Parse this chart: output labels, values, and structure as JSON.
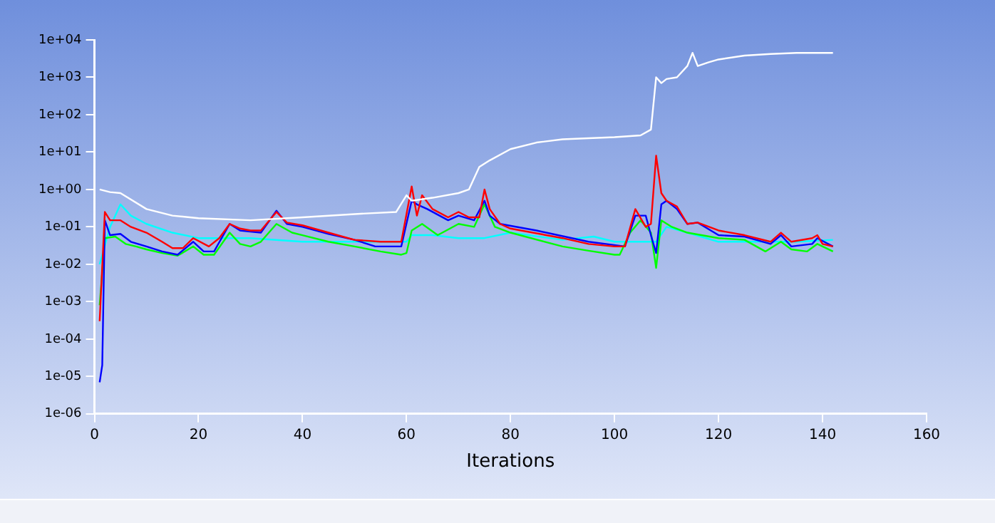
{
  "chart_data": {
    "type": "line",
    "xlabel": "Iterations",
    "log": "y",
    "grid": false,
    "legend": false,
    "marker": "none",
    "line_style": "solid",
    "xlim": [
      0,
      160
    ],
    "xticks": [
      0,
      20,
      40,
      60,
      80,
      100,
      120,
      140,
      160
    ],
    "ylim": [
      1e-06,
      10000
    ],
    "yticks": [
      {
        "value": 1e-06,
        "label": "1e-06"
      },
      {
        "value": 1e-05,
        "label": "1e-05"
      },
      {
        "value": 0.0001,
        "label": "1e-04"
      },
      {
        "value": 0.001,
        "label": "1e-03"
      },
      {
        "value": 0.01,
        "label": "1e-02"
      },
      {
        "value": 0.1,
        "label": "1e-01"
      },
      {
        "value": 1,
        "label": "1e+00"
      },
      {
        "value": 10,
        "label": "1e+01"
      },
      {
        "value": 100,
        "label": "1e+02"
      },
      {
        "value": 1000,
        "label": "1e+03"
      },
      {
        "value": 10000,
        "label": "1e+04"
      }
    ],
    "series": [
      {
        "color": "#ffffff",
        "x": [
          1,
          3,
          5,
          10,
          15,
          20,
          30,
          40,
          50,
          58,
          60,
          61,
          65,
          70,
          72,
          74,
          76,
          80,
          85,
          90,
          100,
          105,
          107,
          108,
          109,
          110,
          112,
          114,
          115,
          116,
          118,
          120,
          125,
          130,
          135,
          142
        ],
        "values": [
          1.0,
          0.85,
          0.8,
          0.3,
          0.2,
          0.17,
          0.15,
          0.18,
          0.22,
          0.25,
          0.7,
          0.5,
          0.6,
          0.8,
          1.0,
          4,
          6,
          12,
          18,
          22,
          25,
          28,
          40,
          1000,
          700,
          900,
          1000,
          2000,
          4500,
          2000,
          2500,
          3000,
          3800,
          4200,
          4500,
          4500
        ]
      },
      {
        "color": "#ff0000",
        "x": [
          1,
          2,
          3,
          5,
          7,
          10,
          13,
          15,
          17,
          19,
          22,
          24,
          26,
          28,
          30,
          32,
          35,
          37,
          40,
          45,
          50,
          55,
          59,
          61,
          62,
          63,
          65,
          68,
          70,
          72,
          74,
          75,
          76,
          78,
          80,
          90,
          95,
          100,
          102,
          104,
          106,
          107,
          108,
          109,
          110,
          112,
          114,
          116,
          120,
          125,
          130,
          132,
          134,
          138,
          139,
          140,
          142
        ],
        "values": [
          0.0003,
          0.25,
          0.15,
          0.15,
          0.1,
          0.07,
          0.04,
          0.027,
          0.027,
          0.05,
          0.03,
          0.05,
          0.12,
          0.09,
          0.08,
          0.08,
          0.25,
          0.13,
          0.11,
          0.07,
          0.045,
          0.04,
          0.04,
          1.2,
          0.2,
          0.7,
          0.3,
          0.18,
          0.25,
          0.18,
          0.18,
          1.0,
          0.3,
          0.12,
          0.09,
          0.05,
          0.035,
          0.03,
          0.03,
          0.3,
          0.1,
          0.12,
          8,
          0.8,
          0.5,
          0.35,
          0.12,
          0.13,
          0.08,
          0.06,
          0.04,
          0.07,
          0.04,
          0.05,
          0.06,
          0.035,
          0.03
        ]
      },
      {
        "color": "#0000ff",
        "x": [
          1,
          1.5,
          2,
          3,
          5,
          7,
          10,
          13,
          16,
          19,
          21,
          23,
          26,
          28,
          32,
          35,
          37,
          40,
          45,
          50,
          54,
          59,
          61,
          62,
          64,
          68,
          70,
          73,
          75,
          76,
          78,
          85,
          95,
          102,
          104,
          106,
          107,
          108,
          109,
          110,
          112,
          114,
          116,
          120,
          125,
          130,
          132,
          134,
          138,
          139,
          142
        ],
        "values": [
          7e-06,
          2e-05,
          0.15,
          0.06,
          0.065,
          0.04,
          0.03,
          0.022,
          0.018,
          0.04,
          0.022,
          0.022,
          0.12,
          0.08,
          0.07,
          0.27,
          0.12,
          0.1,
          0.065,
          0.045,
          0.03,
          0.03,
          0.5,
          0.4,
          0.3,
          0.15,
          0.2,
          0.15,
          0.5,
          0.2,
          0.12,
          0.08,
          0.04,
          0.03,
          0.2,
          0.2,
          0.06,
          0.02,
          0.4,
          0.5,
          0.3,
          0.12,
          0.13,
          0.06,
          0.055,
          0.035,
          0.06,
          0.03,
          0.035,
          0.05,
          0.03
        ]
      },
      {
        "color": "#00ff00",
        "x": [
          1,
          2,
          4,
          6,
          8,
          10,
          13,
          16,
          19,
          21,
          23,
          26,
          28,
          30,
          32,
          35,
          38,
          40,
          45,
          50,
          55,
          59,
          60,
          61,
          63,
          66,
          70,
          73,
          75,
          77,
          80,
          90,
          95,
          100,
          101,
          103,
          105,
          107,
          108,
          109,
          111,
          114,
          120,
          125,
          129,
          132,
          134,
          137,
          139,
          142
        ],
        "values": [
          0.0008,
          0.05,
          0.055,
          0.035,
          0.03,
          0.025,
          0.02,
          0.017,
          0.03,
          0.018,
          0.018,
          0.07,
          0.035,
          0.03,
          0.04,
          0.12,
          0.07,
          0.06,
          0.04,
          0.03,
          0.022,
          0.018,
          0.02,
          0.08,
          0.12,
          0.06,
          0.12,
          0.1,
          0.4,
          0.1,
          0.07,
          0.03,
          0.023,
          0.018,
          0.018,
          0.07,
          0.15,
          0.07,
          0.008,
          0.15,
          0.1,
          0.07,
          0.05,
          0.045,
          0.022,
          0.04,
          0.025,
          0.022,
          0.035,
          0.022
        ]
      },
      {
        "color": "#00ffff",
        "x": [
          1,
          3,
          5,
          7,
          10,
          15,
          20,
          30,
          40,
          50,
          60,
          61,
          65,
          70,
          75,
          80,
          90,
          96,
          100,
          105,
          108,
          110,
          114,
          120,
          130,
          135,
          142
        ],
        "values": [
          0.01,
          0.1,
          0.4,
          0.2,
          0.12,
          0.07,
          0.05,
          0.05,
          0.04,
          0.04,
          0.04,
          0.06,
          0.06,
          0.05,
          0.05,
          0.07,
          0.045,
          0.055,
          0.04,
          0.04,
          0.04,
          0.1,
          0.07,
          0.04,
          0.04,
          0.04,
          0.045
        ]
      }
    ]
  }
}
